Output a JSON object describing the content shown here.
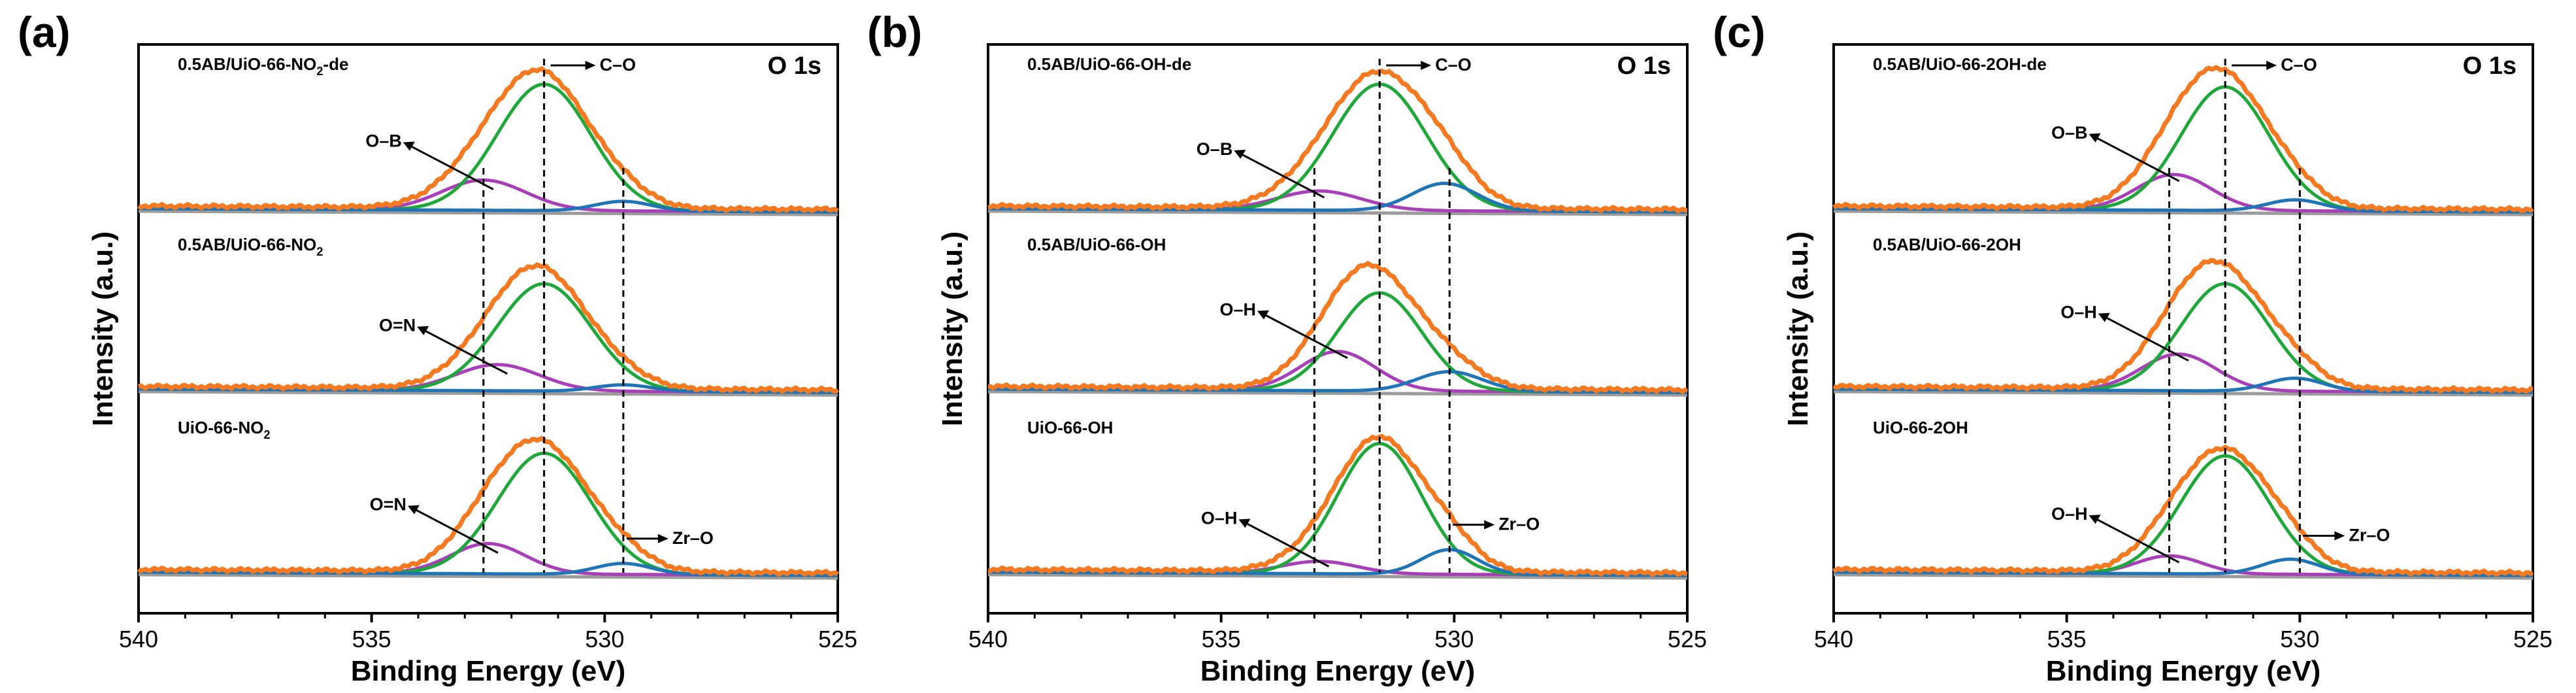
{
  "chart_data": [
    {
      "type": "line",
      "panel_label": "(a)",
      "title": "O 1s",
      "xlabel": "Binding Energy (eV)",
      "ylabel": "Intensity (a.u.)",
      "xlim": [
        540,
        525
      ],
      "xticks": [
        "540",
        "535",
        "530",
        "525"
      ],
      "reference_lines_eV": [
        532.6,
        531.3,
        529.6
      ],
      "spectra": [
        {
          "label": "0.5AB/UiO-66-NO",
          "label_sub": "2",
          "label_tail": "-de",
          "components": [
            {
              "name": "O–B",
              "center": 532.6,
              "height": 0.22,
              "width": 0.9
            },
            {
              "name": "C–O",
              "center": 531.3,
              "height": 0.92,
              "width": 1.0
            },
            {
              "name": "Zr–O",
              "center": 529.6,
              "height": 0.07,
              "width": 0.6
            }
          ],
          "annotations": [
            {
              "text": "O–B",
              "x": 532.6,
              "y": 0.2
            },
            {
              "text": "C–O",
              "x": 531.3,
              "y": 1.0
            }
          ]
        },
        {
          "label": "0.5AB/UiO-66-NO",
          "label_sub": "2",
          "label_tail": "",
          "components": [
            {
              "name": "O=N",
              "center": 532.3,
              "height": 0.2,
              "width": 0.9
            },
            {
              "name": "C–O",
              "center": 531.3,
              "height": 0.82,
              "width": 1.0
            },
            {
              "name": "Zr–O",
              "center": 529.6,
              "height": 0.05,
              "width": 0.6
            }
          ],
          "annotations": [
            {
              "text": "O=N",
              "x": 532.3,
              "y": 0.18
            }
          ]
        },
        {
          "label": "UiO-66-NO",
          "label_sub": "2",
          "label_tail": "",
          "components": [
            {
              "name": "O=N",
              "center": 532.5,
              "height": 0.22,
              "width": 0.8
            },
            {
              "name": "C–O",
              "center": 531.3,
              "height": 0.88,
              "width": 1.0
            },
            {
              "name": "Zr–O",
              "center": 529.6,
              "height": 0.08,
              "width": 0.6
            }
          ],
          "annotations": [
            {
              "text": "O=N",
              "x": 532.5,
              "y": 0.2
            },
            {
              "text": "Zr–O",
              "x": 529.6,
              "y": 0.08
            }
          ]
        }
      ]
    },
    {
      "type": "line",
      "panel_label": "(b)",
      "title": "O 1s",
      "xlabel": "Binding Energy (eV)",
      "ylabel": "Intensity (a.u.)",
      "xlim": [
        540,
        525
      ],
      "xticks": [
        "540",
        "535",
        "530",
        "525"
      ],
      "reference_lines_eV": [
        533.0,
        531.6,
        530.1
      ],
      "spectra": [
        {
          "label": "0.5AB/UiO-66-OH-de",
          "label_sub": "",
          "label_tail": "",
          "components": [
            {
              "name": "O–B",
              "center": 532.9,
              "height": 0.14,
              "width": 0.9
            },
            {
              "name": "C–O",
              "center": 531.6,
              "height": 0.92,
              "width": 1.0
            },
            {
              "name": "Zr–O",
              "center": 530.2,
              "height": 0.2,
              "width": 0.7
            }
          ],
          "annotations": [
            {
              "text": "O–B",
              "x": 533.0,
              "y": 0.14
            },
            {
              "text": "C–O",
              "x": 531.6,
              "y": 1.0
            }
          ]
        },
        {
          "label": "0.5AB/UiO-66-OH",
          "label_sub": "",
          "label_tail": "",
          "components": [
            {
              "name": "O–H",
              "center": 532.5,
              "height": 0.3,
              "width": 0.8
            },
            {
              "name": "C–O",
              "center": 531.6,
              "height": 0.75,
              "width": 0.9
            },
            {
              "name": "Zr–O",
              "center": 530.1,
              "height": 0.15,
              "width": 0.7
            }
          ],
          "annotations": [
            {
              "text": "O–H",
              "x": 532.5,
              "y": 0.3
            }
          ]
        },
        {
          "label": "UiO-66-OH",
          "label_sub": "",
          "label_tail": "",
          "components": [
            {
              "name": "O–H",
              "center": 532.9,
              "height": 0.09,
              "width": 0.8
            },
            {
              "name": "C–O",
              "center": 531.6,
              "height": 0.95,
              "width": 0.9
            },
            {
              "name": "Zr–O",
              "center": 530.1,
              "height": 0.18,
              "width": 0.6
            }
          ],
          "annotations": [
            {
              "text": "O–H",
              "x": 532.9,
              "y": 0.1
            },
            {
              "text": "Zr–O",
              "x": 530.1,
              "y": 0.18
            }
          ]
        }
      ]
    },
    {
      "type": "line",
      "panel_label": "(c)",
      "title": "O 1s",
      "xlabel": "Binding Energy (eV)",
      "ylabel": "Intensity (a.u.)",
      "xlim": [
        540,
        525
      ],
      "xticks": [
        "540",
        "535",
        "530",
        "525"
      ],
      "reference_lines_eV": [
        532.8,
        531.6,
        530.0
      ],
      "spectra": [
        {
          "label": "0.5AB/UiO-66-2OH-de",
          "label_sub": "",
          "label_tail": "",
          "components": [
            {
              "name": "O–B",
              "center": 532.7,
              "height": 0.26,
              "width": 0.8
            },
            {
              "name": "C–O",
              "center": 531.6,
              "height": 0.9,
              "width": 0.95
            },
            {
              "name": "Zr–O",
              "center": 530.1,
              "height": 0.08,
              "width": 0.6
            }
          ],
          "annotations": [
            {
              "text": "O–B",
              "x": 532.8,
              "y": 0.26
            },
            {
              "text": "C–O",
              "x": 531.6,
              "y": 1.0
            }
          ]
        },
        {
          "label": "0.5AB/UiO-66-2OH",
          "label_sub": "",
          "label_tail": "",
          "components": [
            {
              "name": "O–H",
              "center": 532.6,
              "height": 0.28,
              "width": 0.8
            },
            {
              "name": "C–O",
              "center": 531.6,
              "height": 0.82,
              "width": 0.95
            },
            {
              "name": "Zr–O",
              "center": 530.1,
              "height": 0.1,
              "width": 0.6
            }
          ],
          "annotations": [
            {
              "text": "O–H",
              "x": 532.6,
              "y": 0.28
            }
          ]
        },
        {
          "label": "UiO-66-2OH",
          "label_sub": "",
          "label_tail": "",
          "components": [
            {
              "name": "O–H",
              "center": 532.8,
              "height": 0.13,
              "width": 0.7
            },
            {
              "name": "C–O",
              "center": 531.6,
              "height": 0.86,
              "width": 0.95
            },
            {
              "name": "Zr–O",
              "center": 530.2,
              "height": 0.11,
              "width": 0.6
            }
          ],
          "annotations": [
            {
              "text": "O–H",
              "x": 532.8,
              "y": 0.13
            },
            {
              "text": "Zr–O",
              "x": 530.0,
              "y": 0.1
            }
          ]
        }
      ]
    }
  ],
  "colors": {
    "envelope": "#f47920",
    "c_o": "#1fa83a",
    "minor_peak": "#a93fb8",
    "zr_o": "#1f74b8",
    "background": "#9b9b9b",
    "axis": "#000000"
  }
}
